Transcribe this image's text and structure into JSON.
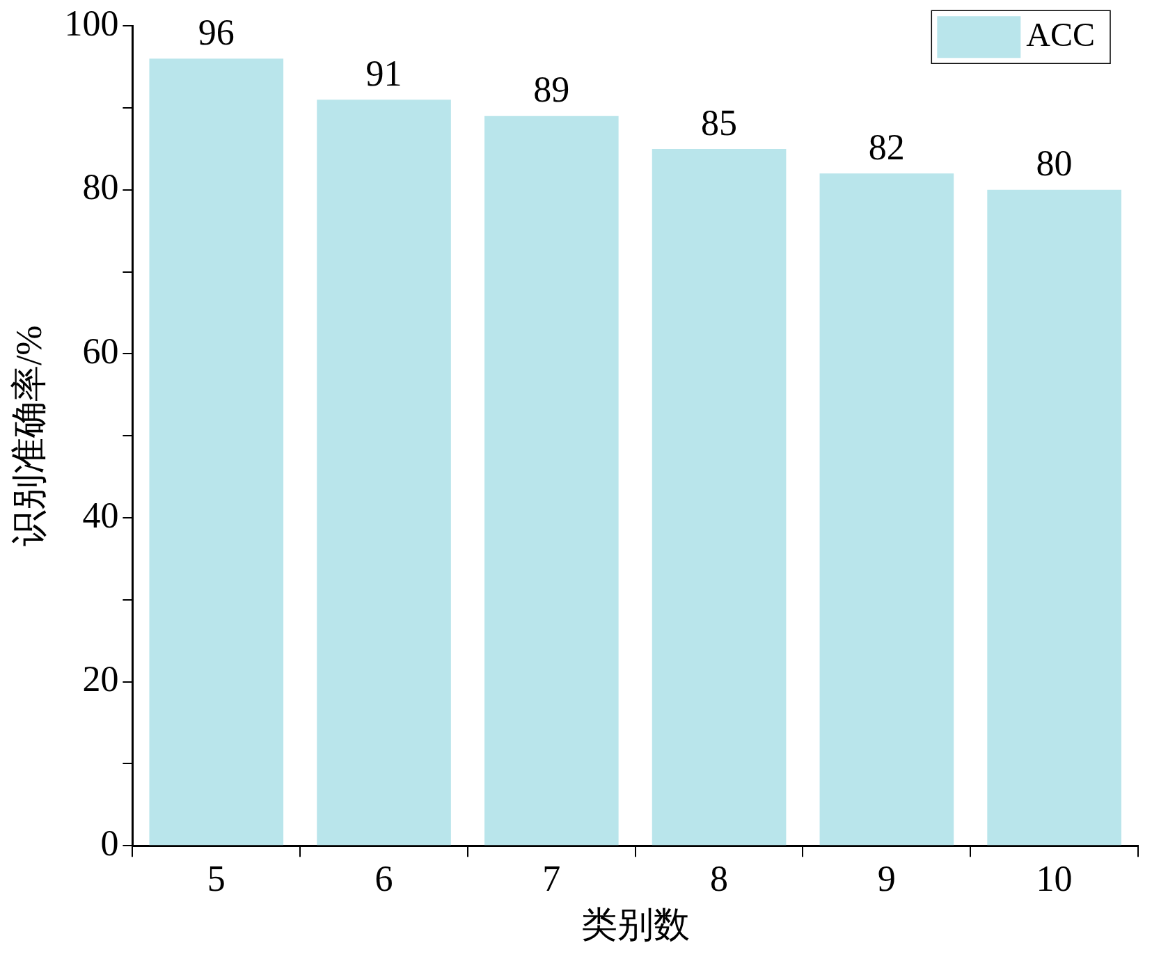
{
  "chart_data": {
    "type": "bar",
    "xlabel": "类别数",
    "ylabel": "识别准确率/%",
    "categories": [
      "5",
      "6",
      "7",
      "8",
      "9",
      "10"
    ],
    "series": [
      {
        "name": "ACC",
        "color": "#b9e5eb",
        "values": [
          96,
          91,
          89,
          85,
          82,
          80
        ]
      }
    ],
    "ylim": [
      0,
      100
    ],
    "yticks": [
      0,
      {
        "value": 10,
        "label": null
      },
      20,
      {
        "value": 30,
        "label": null
      },
      40,
      {
        "value": 50,
        "label": null
      },
      60,
      {
        "value": 70,
        "label": null
      },
      80,
      {
        "value": 90,
        "label": null
      },
      100
    ],
    "data_labels": true,
    "grid": false,
    "legend": "top right"
  }
}
